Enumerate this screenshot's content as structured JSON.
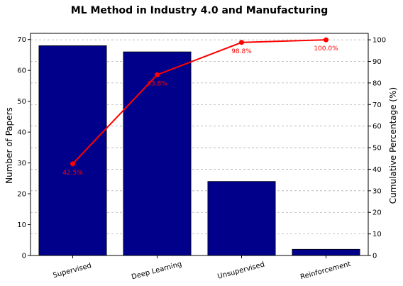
{
  "chart_data": {
    "type": "bar",
    "title": "ML Method in Industry 4.0 and Manufacturing",
    "categories": [
      "Supervised",
      "Deep Learning",
      "Unsupervised",
      "Reinforcement"
    ],
    "values": [
      68,
      66,
      24,
      2
    ],
    "ylabel": "Number of Papers",
    "y2label": "Cumulative Percentage (%)",
    "ylim": [
      0,
      72
    ],
    "y2lim": [
      0,
      103
    ],
    "yticks": [
      0,
      10,
      20,
      30,
      40,
      50,
      60,
      70
    ],
    "y2ticks": [
      0,
      10,
      20,
      30,
      40,
      50,
      60,
      70,
      80,
      90,
      100
    ],
    "cumulative_pct": [
      42.5,
      83.8,
      98.8,
      100.0
    ],
    "cumulative_labels": [
      "42.5%",
      "83.8%",
      "98.8%",
      "100.0%"
    ],
    "grid": "horizontal-dashed",
    "bar_color": "#00008b",
    "line_color": "#ff0000"
  }
}
